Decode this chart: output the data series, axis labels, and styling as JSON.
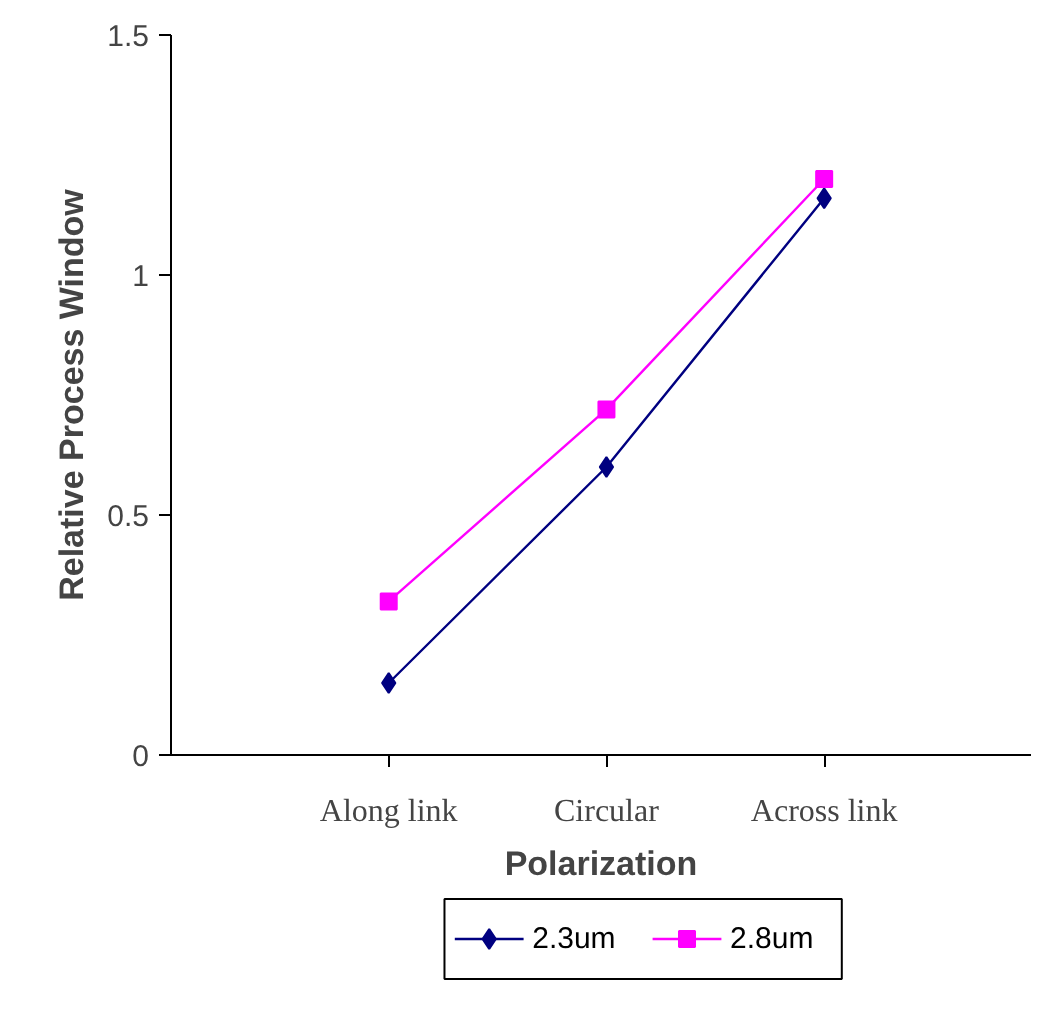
{
  "chart_data": {
    "type": "line",
    "xlabel": "Polarization",
    "ylabel": "Relative Process Window",
    "categories": [
      "Along link",
      "Circular",
      "Across link"
    ],
    "series": [
      {
        "name": "2.3um",
        "color": "#000080",
        "values": [
          0.15,
          0.6,
          1.16
        ],
        "marker": "diamond"
      },
      {
        "name": "2.8um",
        "color": "#ff00ff",
        "values": [
          0.32,
          0.72,
          1.2
        ],
        "marker": "square"
      }
    ],
    "ylim": [
      0,
      1.5
    ],
    "yticks": [
      0,
      0.5,
      1,
      1.5
    ],
    "grid": false,
    "legend": "bottom",
    "line_style": "solid"
  }
}
